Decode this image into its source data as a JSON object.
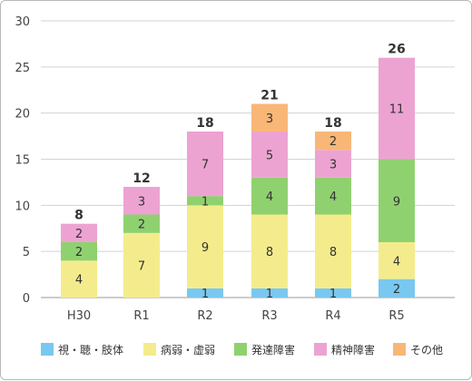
{
  "chart_data": {
    "type": "bar",
    "stacked": true,
    "categories": [
      "H30",
      "R1",
      "R2",
      "R3",
      "R4",
      "R5"
    ],
    "series": [
      {
        "name": "視・聴・肢体",
        "color": "#79c8f0",
        "values": [
          0,
          0,
          1,
          1,
          1,
          2
        ]
      },
      {
        "name": "病弱・虚弱",
        "color": "#f4ec8c",
        "values": [
          4,
          7,
          9,
          8,
          8,
          4
        ]
      },
      {
        "name": "発達障害",
        "color": "#8fd16f",
        "values": [
          2,
          2,
          1,
          4,
          4,
          9
        ]
      },
      {
        "name": "精神障害",
        "color": "#eda3d2",
        "values": [
          2,
          3,
          7,
          5,
          3,
          11
        ]
      },
      {
        "name": "その他",
        "color": "#f8b777",
        "values": [
          0,
          0,
          0,
          3,
          2,
          0
        ]
      }
    ],
    "totals": [
      8,
      12,
      18,
      21,
      18,
      26
    ],
    "yticks": [
      0,
      5,
      10,
      15,
      20,
      25,
      30
    ],
    "ylim": [
      0,
      30
    ],
    "grid": true,
    "legend_position": "bottom"
  }
}
